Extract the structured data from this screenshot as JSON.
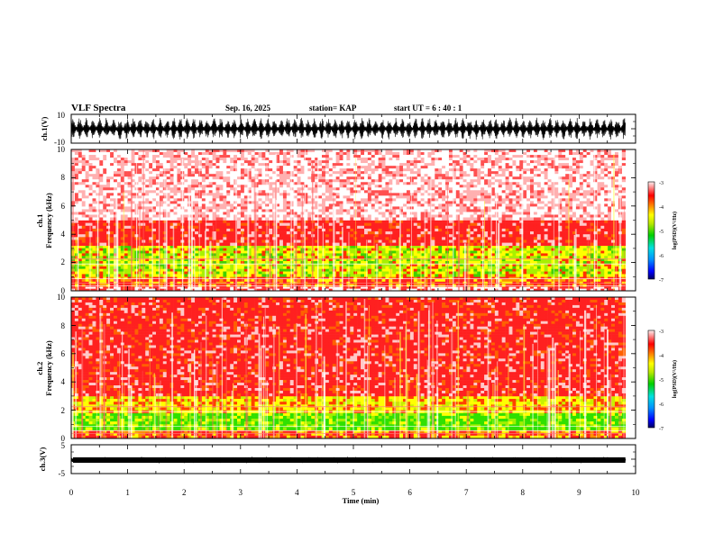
{
  "header": {
    "title": "VLF Spectra",
    "date": "Sep. 16, 2025",
    "station": "station= KAP",
    "start": "start  UT =   6 : 40 : 1"
  },
  "chart_data": {
    "type": "heatmap",
    "title": "VLF Spectra",
    "xlabel": "Time (min)",
    "x_ticks": [
      "0",
      "1",
      "2",
      "3",
      "4",
      "5",
      "6",
      "7",
      "8",
      "9",
      "10"
    ],
    "xlim": [
      0,
      10
    ],
    "data_extent_min": 9.82,
    "panels": [
      {
        "id": "ch1-waveform",
        "type": "line",
        "ylabel": "ch.1(V)",
        "ylim": [
          -10,
          10
        ],
        "y_ticks": [
          "10",
          "-10"
        ],
        "description_level": "dense oscillation filling roughly the middle 70% of the range"
      },
      {
        "id": "ch1-spectrogram",
        "type": "heatmap",
        "ylabel": "ch.1",
        "ylabel2": "Frequency (kHz)",
        "ylim": [
          0,
          10
        ],
        "y_ticks": [
          "0",
          "2",
          "4",
          "6",
          "8",
          "10"
        ],
        "colorbar": {
          "label": "log(PSD)(V²/Hz)",
          "range": [
            -7,
            -3
          ],
          "ticks": [
            "-3",
            "-4",
            "-5",
            "-6",
            "-7"
          ]
        },
        "bands": [
          {
            "freq_khz": [
              0.0,
              0.3
            ],
            "level": "mixed white/red"
          },
          {
            "freq_khz": [
              0.3,
              1.0
            ],
            "level": "red/yellow"
          },
          {
            "freq_khz": [
              1.0,
              3.2
            ],
            "level": "yellow-green"
          },
          {
            "freq_khz": [
              3.2,
              5.0
            ],
            "level": "red"
          },
          {
            "freq_khz": [
              5.0,
              10.0
            ],
            "level": "faint red"
          }
        ]
      },
      {
        "id": "ch2-spectrogram",
        "type": "heatmap",
        "ylabel": "ch.2",
        "ylabel2": "Frequency (kHz)",
        "ylim": [
          0,
          10
        ],
        "y_ticks": [
          "0",
          "2",
          "4",
          "6",
          "8",
          "10"
        ],
        "colorbar": {
          "label": "log(PSD)(V²/Hz)",
          "range": [
            -7,
            -3
          ],
          "ticks": [
            "-3",
            "-4",
            "-5",
            "-6",
            "-7"
          ]
        },
        "bands": [
          {
            "freq_khz": [
              0.0,
              0.6
            ],
            "level": "red/yellow"
          },
          {
            "freq_khz": [
              0.6,
              1.8
            ],
            "level": "green"
          },
          {
            "freq_khz": [
              1.8,
              3.0
            ],
            "level": "yellow"
          },
          {
            "freq_khz": [
              3.0,
              10.0
            ],
            "level": "red"
          }
        ]
      },
      {
        "id": "ch3-waveform",
        "type": "line",
        "ylabel": "ch.3(V)",
        "ylim": [
          -5,
          5
        ],
        "y_ticks": [
          "5",
          "-5"
        ],
        "description_level": "near-constant thick line around 0 V"
      }
    ]
  }
}
